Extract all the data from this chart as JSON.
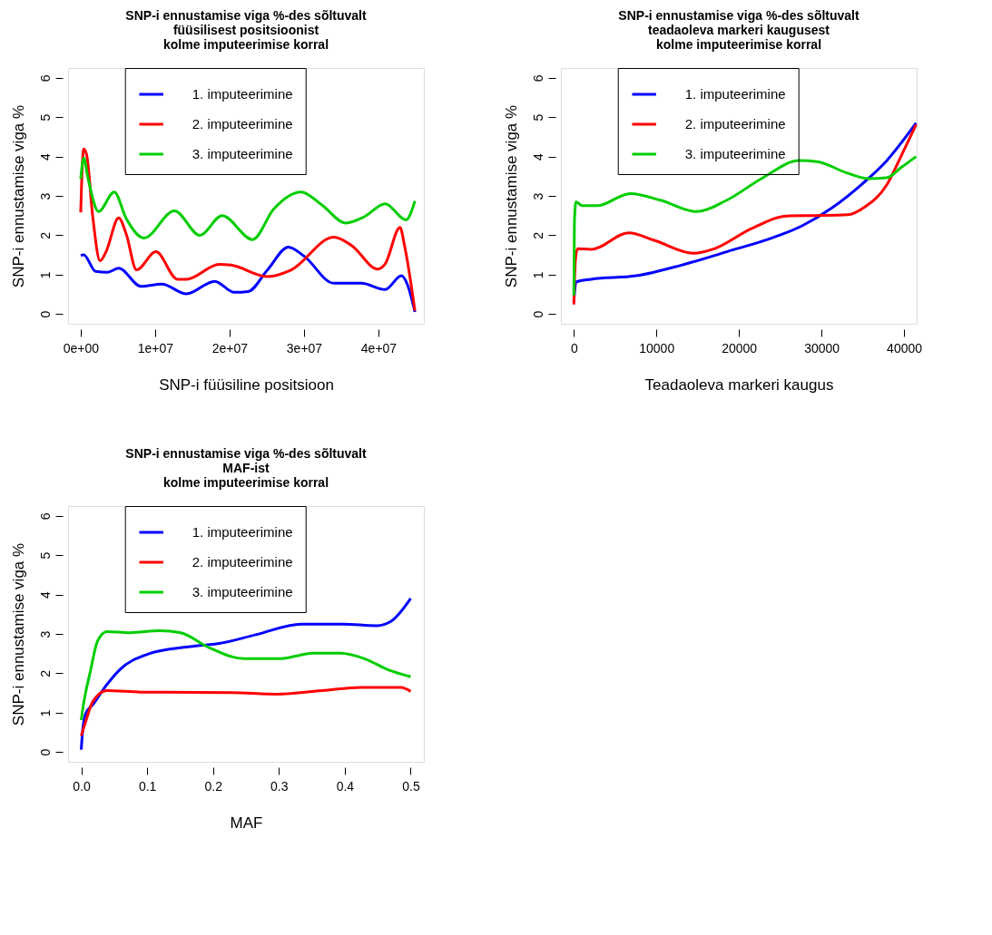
{
  "chart_data": [
    {
      "type": "line",
      "title": "SNP-i ennustamise viga %-des sõltuvalt\nfüüsilisest positsioonist\nkolme imputeerimise korral",
      "xlabel": "SNP-i füüsiline positsioon",
      "ylabel": "SNP-i ennustamise viga %",
      "xlim": [
        -1700000,
        46100000
      ],
      "xticks": [
        {
          "value": 0,
          "label": "0e+00"
        },
        {
          "value": 10000000,
          "label": "1e+07"
        },
        {
          "value": 20000000,
          "label": "2e+07"
        },
        {
          "value": 30000000,
          "label": "3e+07"
        },
        {
          "value": 40000000,
          "label": "4e+07"
        }
      ],
      "ylim": [
        -0.25,
        6.25
      ],
      "yticks": [
        0,
        1,
        2,
        3,
        4,
        5,
        6
      ],
      "grid": false,
      "legend": "top",
      "line_style": "solid",
      "marker": "none",
      "series": [
        {
          "name": "1. imputeerimine",
          "color": "#0000ff",
          "x": [
            0,
            400000,
            2000000,
            3600000,
            5100000,
            8100000,
            10900000,
            14200000,
            18000000,
            20600000,
            22500000,
            25100000,
            27900000,
            30000000,
            34000000,
            37700000,
            40900000,
            43100000,
            43900000,
            44900000
          ],
          "values": [
            1.49,
            1.5,
            1.08,
            1.06,
            1.16,
            0.7,
            0.76,
            0.51,
            0.83,
            0.55,
            0.57,
            1.12,
            1.7,
            1.47,
            0.78,
            0.78,
            0.62,
            0.97,
            0.74,
            0.05
          ]
        },
        {
          "name": "2. imputeerimine",
          "color": "#ff0000",
          "x": [
            0,
            100000,
            400000,
            800000,
            1600000,
            2600000,
            3400000,
            5100000,
            6100000,
            7500000,
            10100000,
            13000000,
            14200000,
            18600000,
            20200000,
            25100000,
            28300000,
            34000000,
            36400000,
            39900000,
            40900000,
            42900000,
            43500000,
            44900000
          ],
          "values": [
            2.58,
            3.2,
            4.19,
            4.04,
            2.5,
            1.35,
            1.58,
            2.44,
            2.04,
            1.12,
            1.58,
            0.88,
            0.88,
            1.26,
            1.24,
            0.95,
            1.12,
            1.95,
            1.74,
            1.14,
            1.27,
            2.2,
            1.74,
            0.08
          ]
        },
        {
          "name": "3. imputeerimine",
          "color": "#00cd00",
          "x": [
            0,
            400000,
            1000000,
            2400000,
            4500000,
            6100000,
            8500000,
            12600000,
            16000000,
            19000000,
            23100000,
            25900000,
            29600000,
            32400000,
            35600000,
            38100000,
            40900000,
            43700000,
            44900000
          ],
          "values": [
            3.43,
            3.96,
            3.43,
            2.6,
            3.1,
            2.43,
            1.93,
            2.62,
            2.0,
            2.5,
            1.89,
            2.66,
            3.1,
            2.77,
            2.31,
            2.47,
            2.8,
            2.39,
            2.87
          ]
        }
      ]
    },
    {
      "type": "line",
      "title": "SNP-i ennustamise viga %-des sõltuvalt\nteadaoleva markeri kaugusest\nkolme imputeerimise korral",
      "xlabel": "Teadaoleva markeri kaugus",
      "ylabel": "SNP-i ennustamise viga %",
      "xlim": [
        -1570,
        41530
      ],
      "xticks": [
        0,
        10000,
        20000,
        30000,
        40000
      ],
      "ylim": [
        -0.25,
        6.25
      ],
      "yticks": [
        0,
        1,
        2,
        3,
        4,
        5,
        6
      ],
      "grid": false,
      "legend": "top",
      "line_style": "solid",
      "marker": "none",
      "series": [
        {
          "name": "1. imputeerimine",
          "color": "#0000ff",
          "x": [
            0,
            260,
            2080,
            7560,
            13040,
            18520,
            24000,
            27650,
            31300,
            34960,
            37880,
            41460
          ],
          "values": [
            0.31,
            0.81,
            0.88,
            0.97,
            1.24,
            1.58,
            1.93,
            2.24,
            2.7,
            3.31,
            3.89,
            4.85
          ]
        },
        {
          "name": "2. imputeerimine",
          "color": "#ff0000",
          "x": [
            0,
            180,
            440,
            2080,
            6650,
            9750,
            14500,
            17060,
            21440,
            25830,
            29480,
            33130,
            35320,
            37880,
            39710,
            41460
          ],
          "values": [
            0.24,
            1.35,
            1.66,
            1.64,
            2.06,
            1.87,
            1.54,
            1.66,
            2.16,
            2.49,
            2.5,
            2.52,
            2.73,
            3.27,
            4.04,
            4.81
          ]
        },
        {
          "name": "3. imputeerimine",
          "color": "#00cd00",
          "x": [
            0,
            70,
            260,
            990,
            2810,
            6830,
            10480,
            14870,
            18520,
            22900,
            27290,
            29480,
            33130,
            35690,
            37880,
            39710,
            41460
          ],
          "values": [
            0.47,
            2.35,
            2.85,
            2.75,
            2.75,
            3.06,
            2.89,
            2.6,
            2.89,
            3.46,
            3.9,
            3.87,
            3.58,
            3.44,
            3.46,
            3.73,
            4.0
          ]
        }
      ]
    },
    {
      "type": "line",
      "title": "SNP-i ennustamise viga %-des sõltuvalt\nMAF-ist\nkolme imputeerimise korral",
      "xlabel": "MAF",
      "ylabel": "SNP-i ennustamise viga %",
      "xlim": [
        -0.02,
        0.52
      ],
      "xticks": [
        {
          "value": 0,
          "label": "0.0"
        },
        0.1,
        0.2,
        0.3,
        0.4,
        0.5
      ],
      "ylim": [
        -0.25,
        6.25
      ],
      "yticks": [
        0,
        1,
        2,
        3,
        4,
        5,
        6
      ],
      "grid": false,
      "legend": "top",
      "line_style": "solid",
      "marker": "none",
      "series": [
        {
          "name": "1. imputeerimine",
          "color": "#0000ff",
          "x": [
            0,
            0.002,
            0.007,
            0.018,
            0.037,
            0.059,
            0.1,
            0.137,
            0.183,
            0.21,
            0.265,
            0.334,
            0.398,
            0.448,
            0.471,
            0.5
          ],
          "values": [
            0.06,
            0.52,
            0.98,
            1.21,
            1.67,
            2.1,
            2.48,
            2.62,
            2.71,
            2.76,
            2.98,
            3.25,
            3.25,
            3.21,
            3.33,
            3.9
          ]
        },
        {
          "name": "2. imputeerimine",
          "color": "#ff0000",
          "x": [
            0,
            0.005,
            0.018,
            0.039,
            0.091,
            0.229,
            0.297,
            0.366,
            0.425,
            0.485,
            0.5
          ],
          "values": [
            0.41,
            0.68,
            1.29,
            1.56,
            1.52,
            1.51,
            1.47,
            1.56,
            1.64,
            1.64,
            1.54
          ]
        },
        {
          "name": "3. imputeerimine",
          "color": "#00cd00",
          "x": [
            0,
            0.002,
            0.014,
            0.025,
            0.039,
            0.073,
            0.119,
            0.151,
            0.192,
            0.247,
            0.302,
            0.352,
            0.393,
            0.43,
            0.467,
            0.5
          ],
          "values": [
            0.81,
            1.06,
            2.06,
            2.83,
            3.06,
            3.03,
            3.08,
            3.03,
            2.67,
            2.37,
            2.37,
            2.51,
            2.51,
            2.37,
            2.08,
            1.91
          ]
        }
      ]
    }
  ]
}
